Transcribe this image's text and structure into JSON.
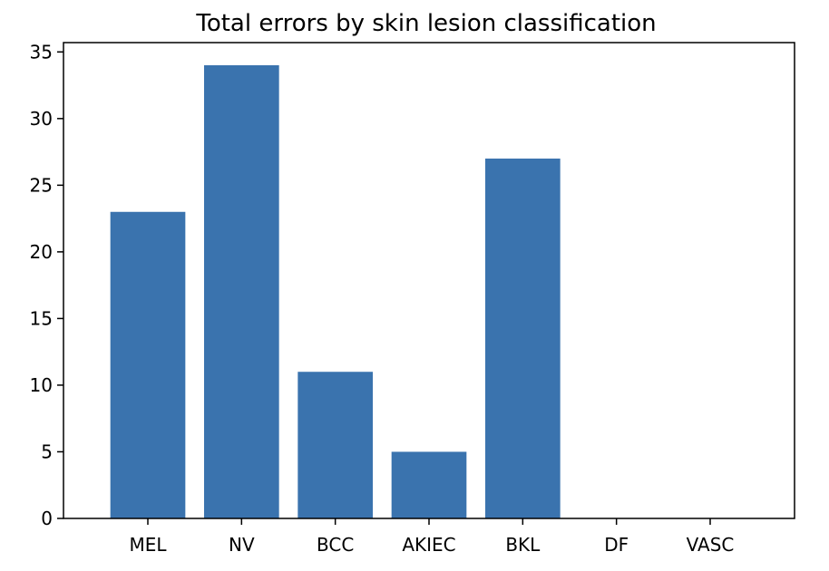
{
  "chart_data": {
    "type": "bar",
    "title": "Total errors by skin lesion classification",
    "xlabel": "",
    "ylabel": "",
    "categories": [
      "MEL",
      "NV",
      "BCC",
      "AKIEC",
      "BKL",
      "DF",
      "VASC"
    ],
    "values": [
      23,
      34,
      11,
      5,
      27,
      0,
      0
    ],
    "ylim": [
      0,
      35.7
    ],
    "yticks": [
      0,
      5,
      10,
      15,
      20,
      25,
      30,
      35
    ],
    "bar_color": "#3a73ae",
    "grid": false,
    "legend": "none"
  }
}
